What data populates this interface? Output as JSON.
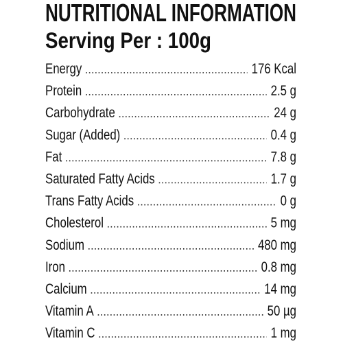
{
  "header": {
    "title": "NUTRITIONAL INFORMATION",
    "subtitle": "Serving Per : 100g"
  },
  "rows": [
    {
      "name": "Energy",
      "value": "176 Kcal"
    },
    {
      "name": "Protein",
      "value": "2.5 g"
    },
    {
      "name": "Carbohydrate",
      "value": "24 g"
    },
    {
      "name": "Sugar (Added)",
      "value": "0.4 g"
    },
    {
      "name": "Fat",
      "value": "7.8 g"
    },
    {
      "name": "Saturated Fatty Acids",
      "value": "1.7 g"
    },
    {
      "name": "Trans Fatty Acids",
      "value": "0 g"
    },
    {
      "name": "Cholesterol",
      "value": "5 mg"
    },
    {
      "name": "Sodium",
      "value": "480 mg"
    },
    {
      "name": "Iron",
      "value": "0.8 mg"
    },
    {
      "name": "Calcium",
      "value": "14 mg"
    },
    {
      "name": "Vitamin A",
      "value": "50 µg"
    },
    {
      "name": "Vitamin C",
      "value": "1 mg"
    }
  ]
}
